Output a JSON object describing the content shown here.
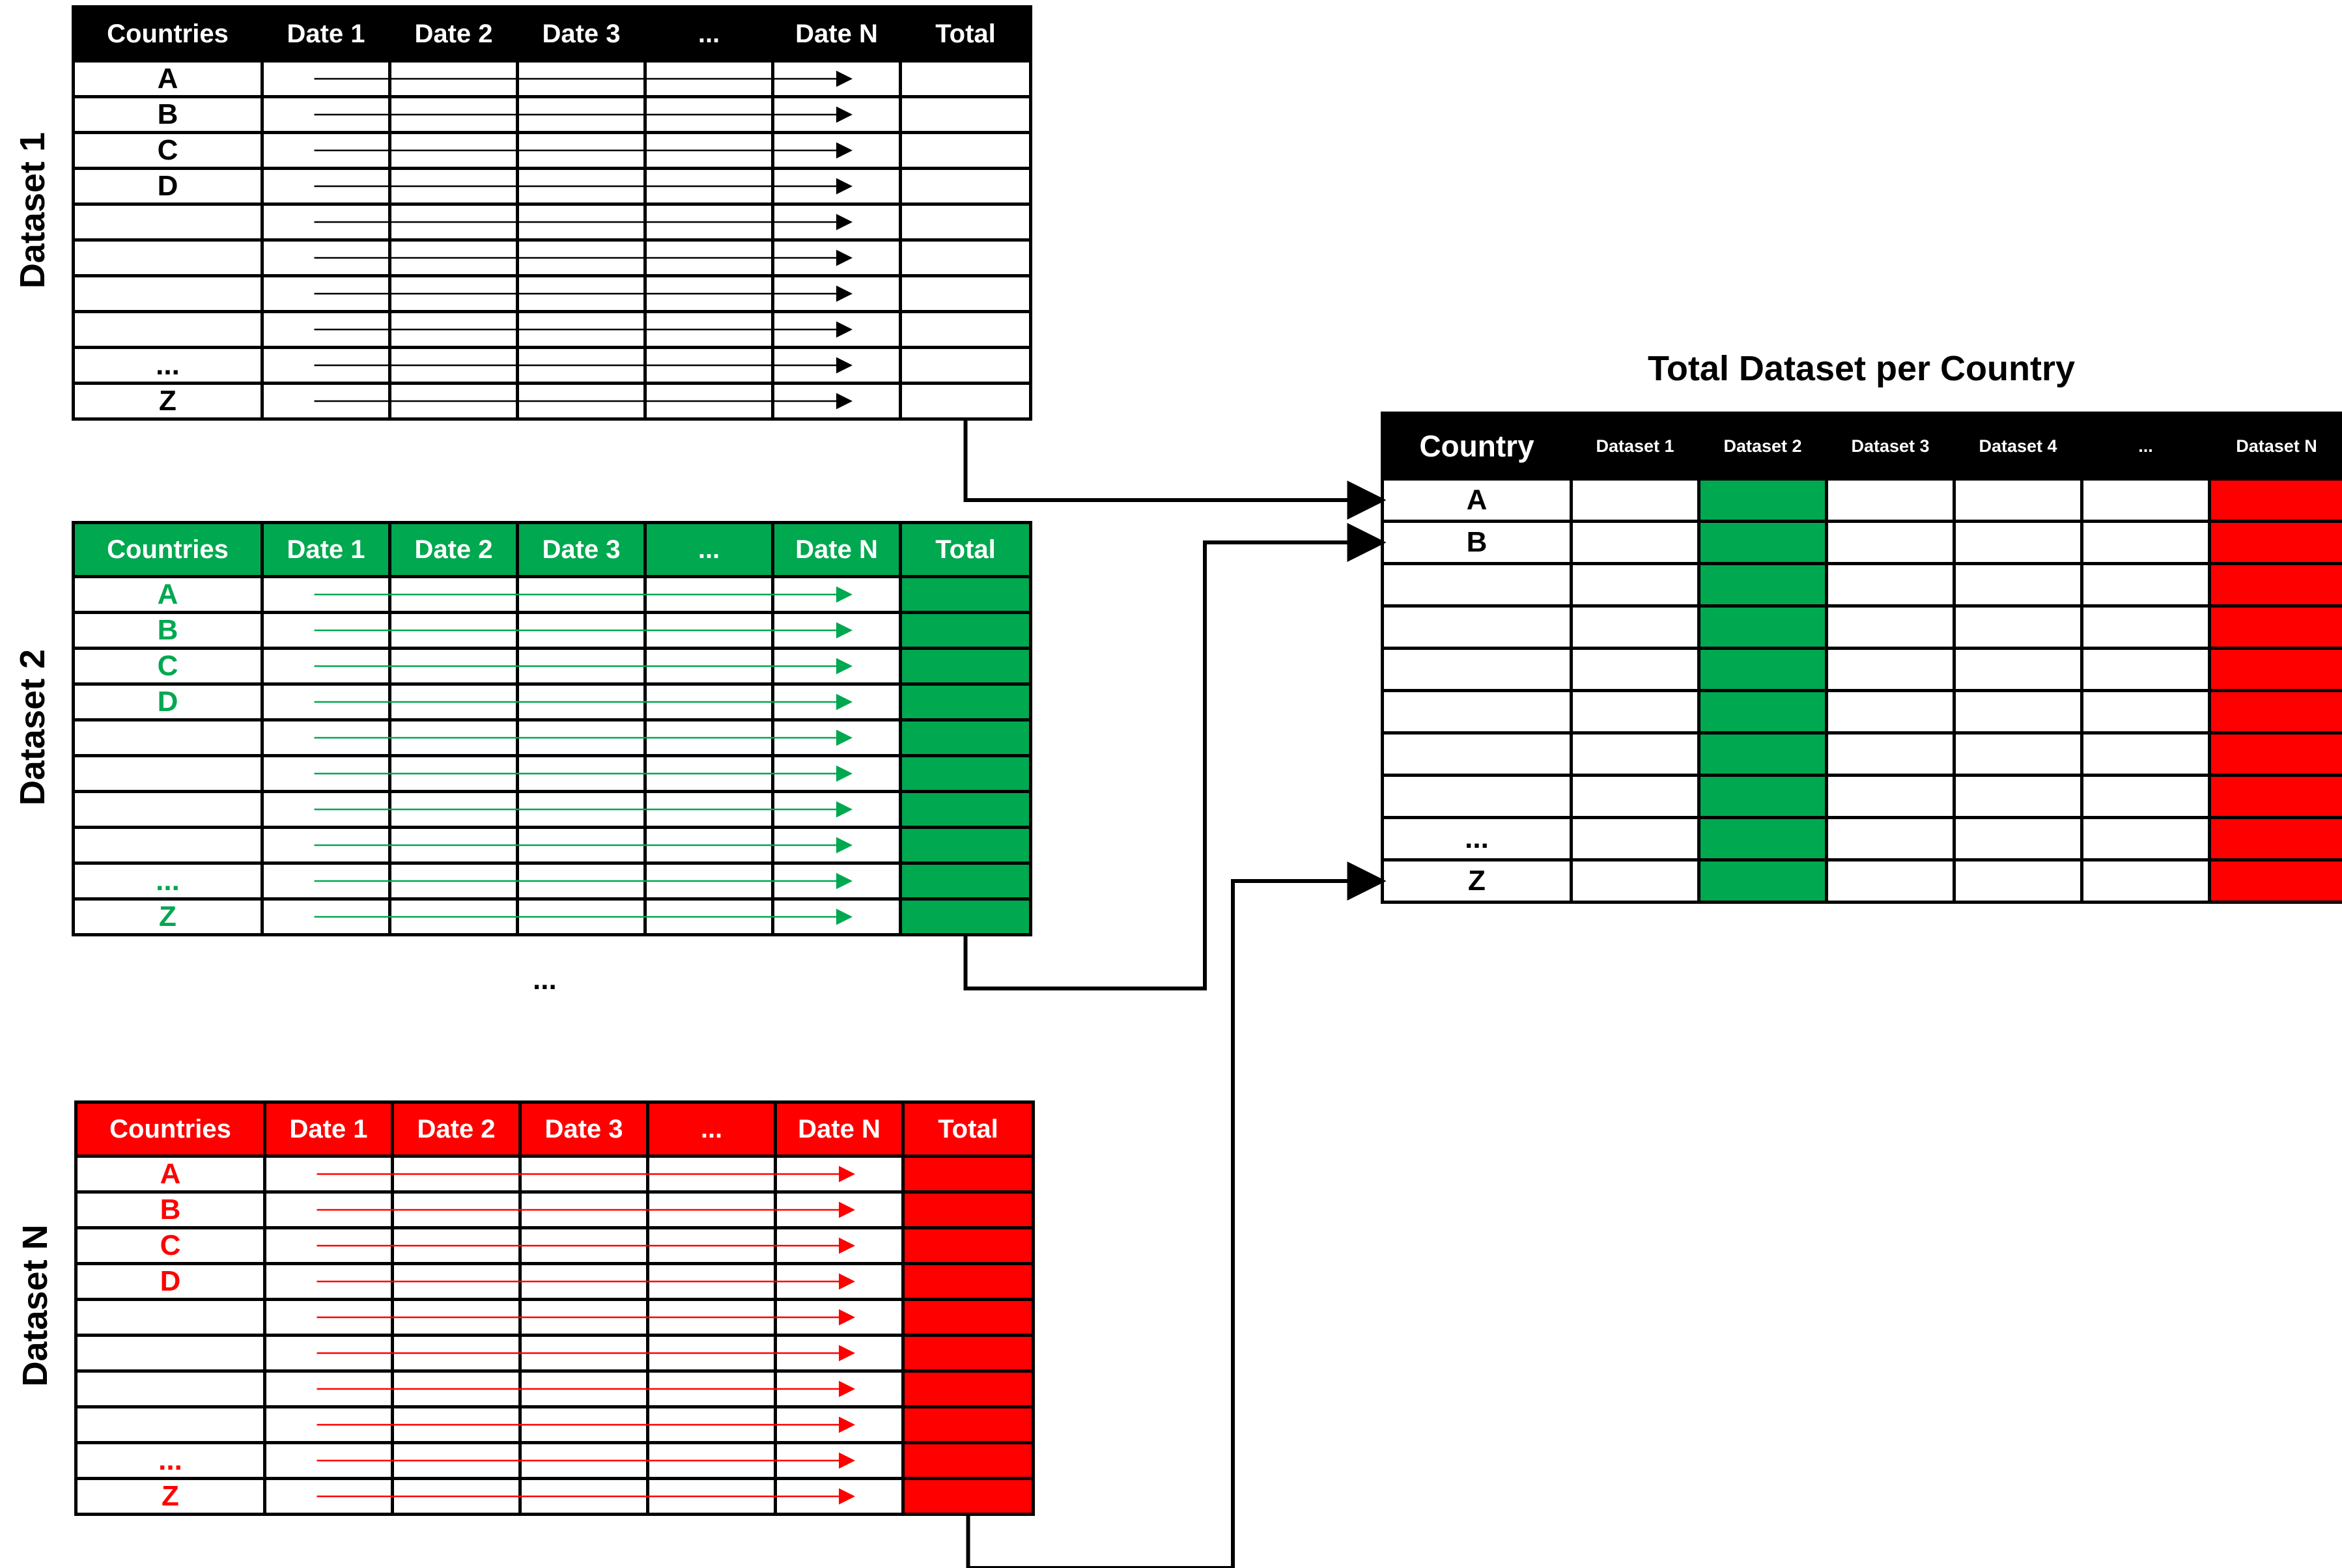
{
  "datasets": [
    {
      "label": "Dataset 1",
      "color": "#000000",
      "header_bg": "#000000",
      "total_fill": "#ffffff",
      "columns": [
        "Countries",
        "Date 1",
        "Date 2",
        "Date 3",
        "...",
        "Date N",
        "Total"
      ],
      "rows": [
        "A",
        "B",
        "C",
        "D",
        "",
        "",
        "",
        "",
        "...",
        "Z"
      ]
    },
    {
      "label": "Dataset 2",
      "color": "#00a850",
      "header_bg": "#00a850",
      "total_fill": "#00a850",
      "columns": [
        "Countries",
        "Date 1",
        "Date 2",
        "Date 3",
        "...",
        "Date N",
        "Total"
      ],
      "rows": [
        "A",
        "B",
        "C",
        "D",
        "",
        "",
        "",
        "",
        "...",
        "Z"
      ]
    },
    {
      "label": "Dataset N",
      "color": "#ff0000",
      "header_bg": "#ff0000",
      "total_fill": "#ff0000",
      "columns": [
        "Countries",
        "Date 1",
        "Date 2",
        "Date 3",
        "...",
        "Date N",
        "Total"
      ],
      "rows": [
        "A",
        "B",
        "C",
        "D",
        "",
        "",
        "",
        "",
        "...",
        "Z"
      ]
    }
  ],
  "between_datasets_ellipsis": "...",
  "summary": {
    "title": "Total Dataset per Country",
    "columns": [
      "Country",
      "Dataset 1",
      "Dataset 2",
      "Dataset 3",
      "Dataset 4",
      "...",
      "Dataset N"
    ],
    "rows": [
      "A",
      "B",
      "",
      "",
      "",
      "",
      "",
      "",
      "...",
      "Z"
    ],
    "column_fills": [
      "#ffffff",
      "#ffffff",
      "#00a850",
      "#ffffff",
      "#ffffff",
      "#ffffff",
      "#ff0000"
    ]
  }
}
